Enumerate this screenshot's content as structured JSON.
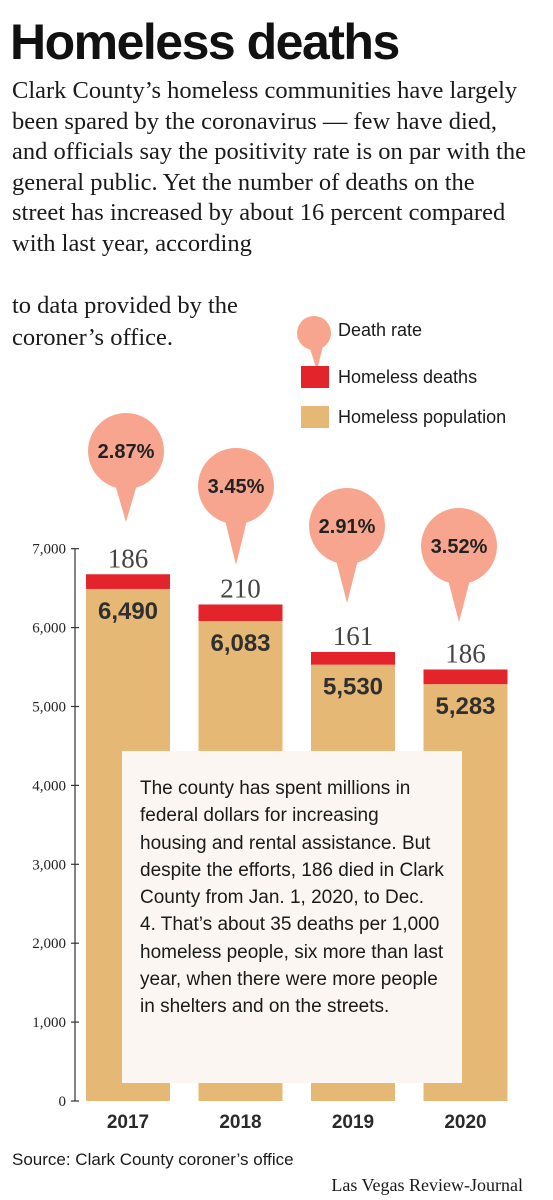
{
  "title": "Homeless deaths",
  "intro_main": "Clark County’s homeless communities have largely been spared by the coronavirus — few have died, and officials say the positivity rate is on par with the general public. Yet the number of deaths on the street has increased by about 16 percent compared with last year, according",
  "intro_end": "to data provided by the coroner’s office.",
  "legend": {
    "rate": "Death rate",
    "deaths": "Homeless deaths",
    "population": "Homeless population"
  },
  "colors": {
    "population": "#e6b876",
    "deaths": "#e3242b",
    "rate_bubble": "#f7a58e",
    "note_box": "#fbf6f1"
  },
  "note": "The county has spent millions in federal dollars for increasing housing and rental assistance. But despite the efforts, 186 died in Clark County from Jan. 1, 2020, to Dec. 4. That’s about 35 deaths per 1,000 homeless people, six more than last year, when there were more people in shelters and on the streets.",
  "source": "Source: Clark County coroner’s office",
  "credit": "Las Vegas Review-Journal",
  "chart_data": {
    "type": "bar",
    "stacked": true,
    "categories": [
      "2017",
      "2018",
      "2019",
      "2020"
    ],
    "series": [
      {
        "name": "Homeless population",
        "values": [
          6490,
          6083,
          5530,
          5283
        ],
        "labels": [
          "6,490",
          "6,083",
          "5,530",
          "5,283"
        ]
      },
      {
        "name": "Homeless deaths",
        "values": [
          186,
          210,
          161,
          186
        ],
        "labels": [
          "186",
          "210",
          "161",
          "186"
        ]
      }
    ],
    "death_rate": {
      "name": "Death rate",
      "values": [
        "2.87%",
        "3.45%",
        "2.91%",
        "3.52%"
      ]
    },
    "y_ticks": [
      0,
      1000,
      2000,
      3000,
      4000,
      5000,
      6000,
      7000
    ],
    "y_tick_labels": [
      "0",
      "1,000",
      "2,000",
      "3,000",
      "4,000",
      "5,000",
      "6,000",
      "7,000"
    ],
    "ylim": [
      0,
      7000
    ],
    "grid": false,
    "legend_position": "top-right"
  }
}
